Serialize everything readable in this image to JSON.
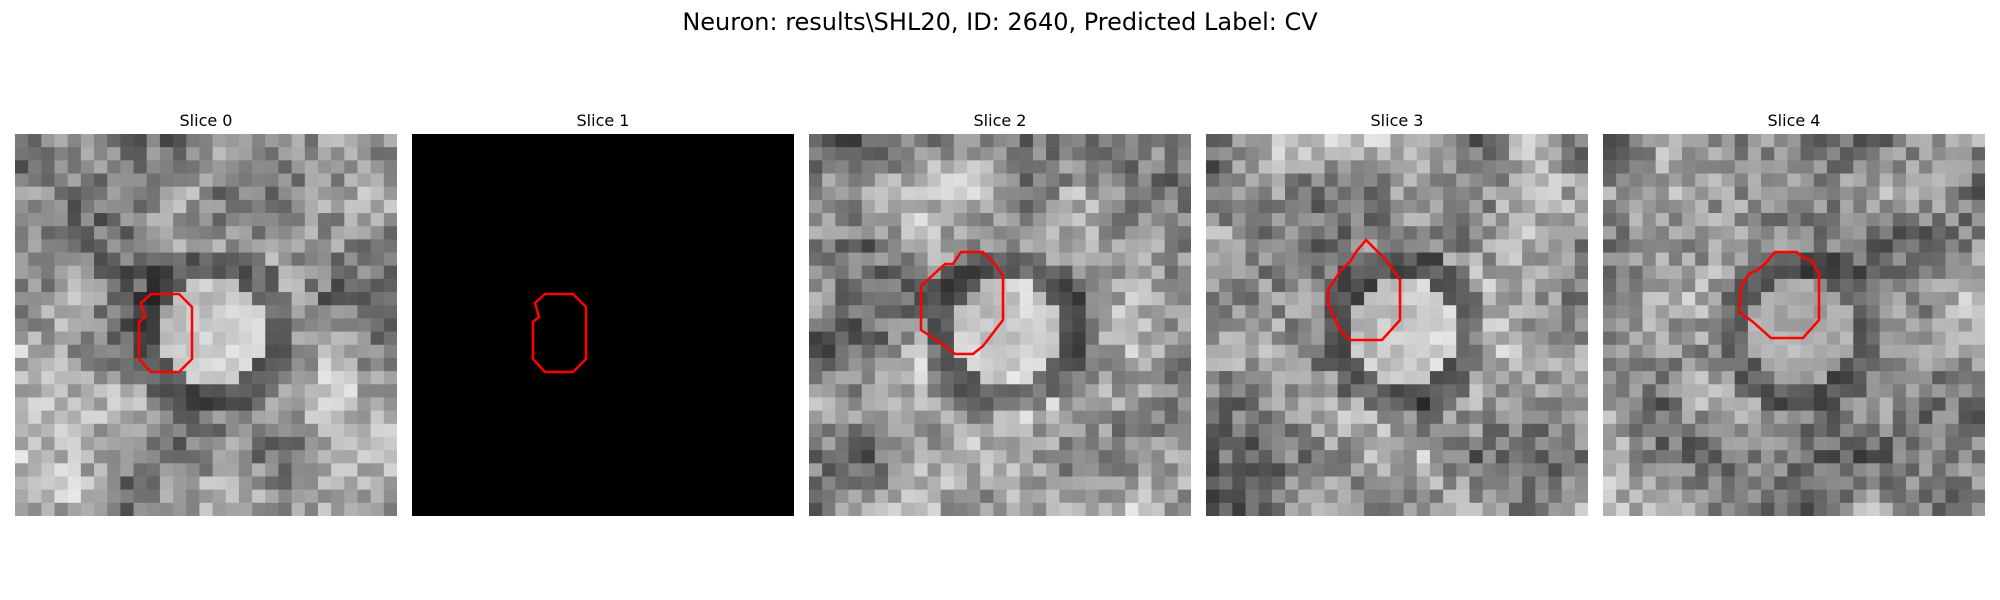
{
  "figure": {
    "title": "Neuron: results\\SHL20, ID: 2640, Predicted Label: CV"
  },
  "colors": {
    "contour": "#ff0000",
    "background": "#ffffff"
  },
  "panels": [
    {
      "title": "Slice 0",
      "image": "noisy grayscale microscopy patch, bright blob center",
      "seed": 11,
      "blob_level": 0.75,
      "dark_ring": true
    },
    {
      "title": "Slice 1",
      "image": "solid black patch",
      "seed": 0,
      "blob_level": 0,
      "dark_ring": false
    },
    {
      "title": "Slice 2",
      "image": "noisy grayscale microscopy patch, bright blob center",
      "seed": 23,
      "blob_level": 0.8,
      "dark_ring": true
    },
    {
      "title": "Slice 3",
      "image": "noisy grayscale microscopy patch, bright blob center",
      "seed": 37,
      "blob_level": 0.85,
      "dark_ring": true
    },
    {
      "title": "Slice 4",
      "image": "noisy grayscale microscopy patch, bright blob center",
      "seed": 51,
      "blob_level": 0.6,
      "dark_ring": true
    }
  ]
}
